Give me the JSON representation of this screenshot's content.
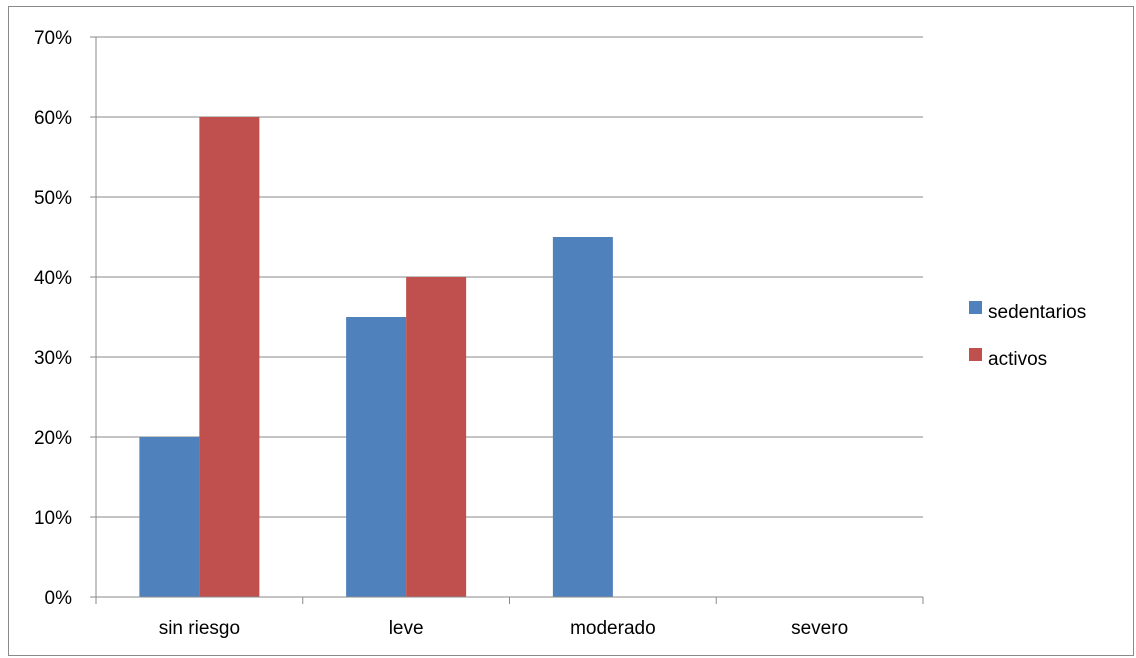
{
  "chart_data": {
    "type": "bar",
    "categories": [
      "sin riesgo",
      "leve",
      "moderado",
      "severo"
    ],
    "series": [
      {
        "name": "sedentarios",
        "color": "#4f81bd",
        "values": [
          20,
          35,
          45,
          0
        ]
      },
      {
        "name": "activos",
        "color": "#c0504d",
        "values": [
          60,
          40,
          0,
          0
        ]
      }
    ],
    "ylim": [
      0,
      70
    ],
    "yticks": [
      0,
      10,
      20,
      30,
      40,
      50,
      60,
      70
    ],
    "ytick_labels": [
      "0%",
      "10%",
      "20%",
      "30%",
      "40%",
      "50%",
      "60%",
      "70%"
    ],
    "y_unit": "percent",
    "grid": "horizontal",
    "legend_position": "right",
    "title": "",
    "xlabel": "",
    "ylabel": ""
  }
}
